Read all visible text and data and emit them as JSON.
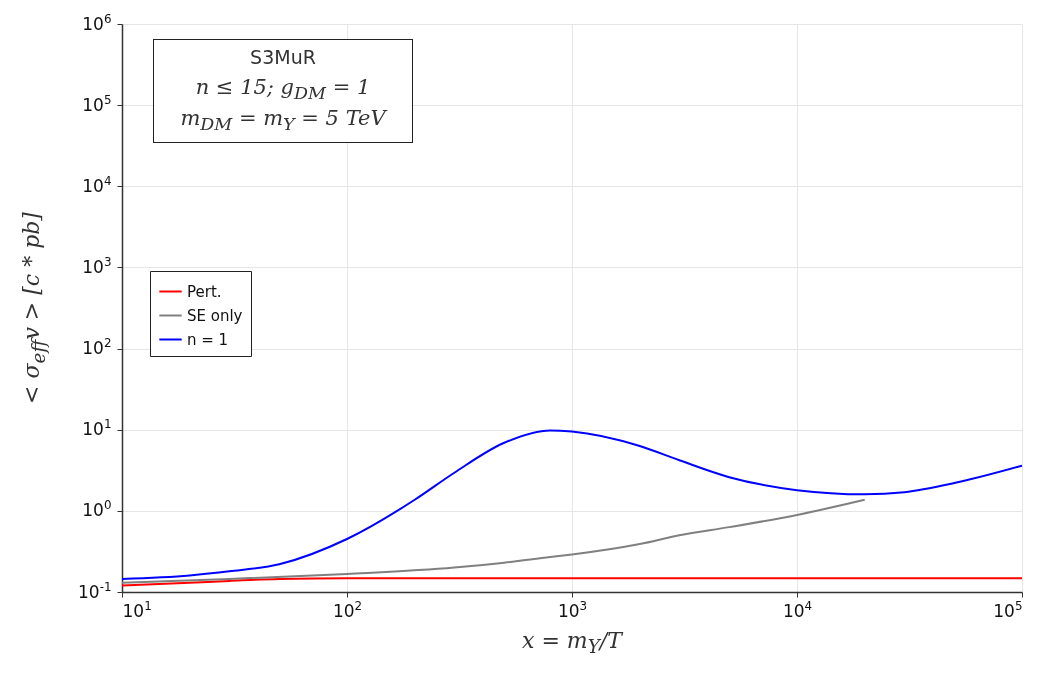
{
  "chart_data": {
    "type": "line",
    "xlabel": "x = m$_{Y}$/T",
    "ylabel": "< σ$_{eff}$v >  [c * pb]",
    "annotations": [
      "S3MuR",
      "n ≤ 15; g$_{DM}$ = 1",
      "m$_{DM}$ = m$_{Y}$ = 5 TeV"
    ],
    "log": "xy",
    "grid": true,
    "legend": "left",
    "xlim": [
      10,
      100000
    ],
    "ylim": [
      0.1,
      1000000
    ],
    "xticks": [
      {
        "value": 10,
        "label": "10$^{1}$"
      },
      {
        "value": 100,
        "label": "10$^{2}$"
      },
      {
        "value": 1000,
        "label": "10$^{3}$"
      },
      {
        "value": 10000,
        "label": "10$^{4}$"
      },
      {
        "value": 100000,
        "label": "10$^{5}$"
      }
    ],
    "yticks": [
      {
        "value": 0.1,
        "label": "10$^{-1}$"
      },
      {
        "value": 1,
        "label": "10$^{0}$"
      },
      {
        "value": 10,
        "label": "10$^{1}$"
      },
      {
        "value": 100,
        "label": "10$^{2}$"
      },
      {
        "value": 1000,
        "label": "10$^{3}$"
      },
      {
        "value": 10000,
        "label": "10$^{4}$"
      },
      {
        "value": 100000,
        "label": "10$^{5}$"
      },
      {
        "value": 1000000,
        "label": "10$^{6}$"
      }
    ],
    "series": [
      {
        "name": "Pert.",
        "color": "#ff0000",
        "x": [
          10,
          20,
          30,
          50,
          100,
          300,
          1000,
          10000,
          100000
        ],
        "values": [
          0.12,
          0.13,
          0.137,
          0.145,
          0.148,
          0.148,
          0.148,
          0.148,
          0.148
        ]
      },
      {
        "name": "SE only",
        "color": "#808080",
        "x": [
          10,
          30,
          100,
          300,
          500,
          800,
          1000,
          2000,
          3000,
          5000,
          10000,
          20000
        ],
        "values": [
          0.13,
          0.145,
          0.167,
          0.2,
          0.23,
          0.27,
          0.29,
          0.39,
          0.5,
          0.63,
          0.89,
          1.37
        ]
      },
      {
        "name": "n = 1",
        "color": "#0000ff",
        "x": [
          10,
          20,
          30,
          50,
          100,
          200,
          300,
          500,
          800,
          1000,
          2000,
          3000,
          5000,
          10000,
          20000,
          30000,
          50000,
          100000
        ],
        "values": [
          0.145,
          0.16,
          0.18,
          0.22,
          0.45,
          1.37,
          2.95,
          6.9,
          9.8,
          9.5,
          6.3,
          4.2,
          2.6,
          1.8,
          1.6,
          1.7,
          2.2,
          3.6
        ]
      }
    ]
  }
}
